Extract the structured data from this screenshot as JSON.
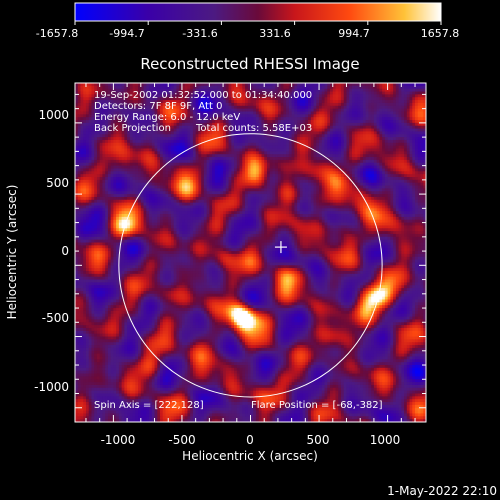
{
  "colorbar": {
    "ticks": [
      "-1657.8",
      "-994.7",
      "-331.6",
      "331.6",
      "994.7",
      "1657.8"
    ],
    "range": [
      -1657.8,
      1657.8
    ]
  },
  "chart_data": {
    "type": "heatmap",
    "title": "Reconstructed RHESSI Image",
    "xlabel": "Heliocentric X (arcsec)",
    "ylabel": "Heliocentric Y (arcsec)",
    "xlim": [
      -1280,
      1280
    ],
    "ylim": [
      -1100,
      1280
    ],
    "x_ticks": [
      "-1000",
      "-500",
      "0",
      "500",
      "1000"
    ],
    "y_ticks": [
      "-1000",
      "-500",
      "0",
      "500",
      "1000"
    ],
    "x_tick_values": [
      -1000,
      -500,
      0,
      500,
      1000
    ],
    "y_tick_values": [
      -1000,
      -500,
      0,
      500,
      1000
    ],
    "solar_limb": {
      "center": [
        0,
        0
      ],
      "radius": 960
    },
    "marker": {
      "type": "cross",
      "x": 222,
      "y": 128
    },
    "colormap": "rhessi-hot",
    "value_range": [
      -1657.8,
      1657.8
    ],
    "annotations": {
      "time_range": "19-Sep-2002 01:32:52.000 to 01:34:40.000",
      "detectors": "Detectors: 7F 8F 9F, Att 0",
      "energy": "Energy Range: 6.0 - 12.0 keV",
      "method": "Back Projection",
      "total_counts": "Total counts: 5.58E+03",
      "spin_axis": "Spin Axis = [222,128]",
      "flare_position": "Flare Position = [-68,-382]"
    },
    "bright_sources": [
      {
        "x": -30,
        "y": -380,
        "value": 1650
      },
      {
        "x": -80,
        "y": -340,
        "value": 1200
      },
      {
        "x": -900,
        "y": 270,
        "value": 1350
      },
      {
        "x": 920,
        "y": -220,
        "value": 1300
      },
      {
        "x": 820,
        "y": -300,
        "value": 900
      },
      {
        "x": 40,
        "y": 650,
        "value": 1200
      },
      {
        "x": 520,
        "y": 700,
        "value": 1100
      },
      {
        "x": -430,
        "y": 550,
        "value": 900
      },
      {
        "x": -200,
        "y": 30,
        "value": 950
      },
      {
        "x": 280,
        "y": -80,
        "value": 900
      },
      {
        "x": 650,
        "y": 280,
        "value": 950
      },
      {
        "x": -320,
        "y": -560,
        "value": 700
      },
      {
        "x": 600,
        "y": -500,
        "value": 750
      },
      {
        "x": 780,
        "y": 480,
        "value": 850
      },
      {
        "x": 1080,
        "y": -150,
        "value": 850
      },
      {
        "x": 1000,
        "y": 250,
        "value": 800
      },
      {
        "x": -700,
        "y": -700,
        "value": 750
      },
      {
        "x": 300,
        "y": 500,
        "value": 900
      },
      {
        "x": -600,
        "y": -200,
        "value": 650
      },
      {
        "x": 100,
        "y": -900,
        "value": 600
      },
      {
        "x": -950,
        "y": 700,
        "value": 700
      }
    ]
  },
  "footer": {
    "date": "1-May-2022 22:10"
  }
}
